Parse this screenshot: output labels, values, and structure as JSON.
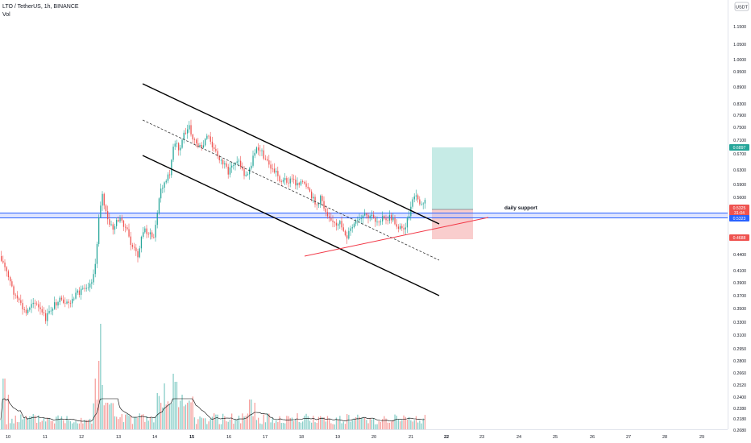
{
  "header": {
    "symbol_line": "LTO / TetherUS, 1h, BINANCE",
    "volume_label": "Vol",
    "currency_badge": "USDT"
  },
  "colors": {
    "up": "#26a69a",
    "down": "#ef5350",
    "channel": "#000000",
    "support": "#2962ff",
    "support_fill": "#b7c6ff",
    "target_zone": "#c6ebe6",
    "stop_zone": "#f9cdcd",
    "trendline": "#f23645",
    "volume_ma": "#000000"
  },
  "chart_data": {
    "type": "candlestick",
    "x_tick_labels": [
      "10",
      "11",
      "12",
      "13",
      "14",
      "15",
      "16",
      "17",
      "18",
      "19",
      "20",
      "21",
      "22",
      "23",
      "24",
      "25",
      "26",
      "27",
      "28",
      "29"
    ],
    "x_ticks_bold": [
      "15",
      "22"
    ],
    "y_tick_labels": [
      "1.1500",
      "1.0500",
      "1.0000",
      "0.9500",
      "0.8900",
      "0.8300",
      "0.7900",
      "0.7500",
      "0.7100",
      "0.6700",
      "0.6300",
      "0.5900",
      "0.5600",
      "0.4400",
      "0.4100",
      "0.3900",
      "0.3700",
      "0.3500",
      "0.3300",
      "0.3100",
      "0.2950",
      "0.2800",
      "0.2660",
      "0.2520",
      "0.2400",
      "0.2280",
      "0.2180",
      "0.2080"
    ],
    "price_tags": [
      {
        "label": "0.6897",
        "color": "#26a69a"
      },
      {
        "label": "0.5325",
        "color": "#ef5350"
      },
      {
        "label": "31:04",
        "color": "#ef5350"
      },
      {
        "label": "0.5323",
        "color": "#2962ff"
      },
      {
        "label": "0.4688",
        "color": "#ef5350"
      }
    ],
    "support_label": "daily support",
    "trade_setup": {
      "entry": 0.5325,
      "target": 0.6897,
      "stop": 0.4688
    },
    "axis_scale": "log",
    "grid": false,
    "legend": "none"
  }
}
